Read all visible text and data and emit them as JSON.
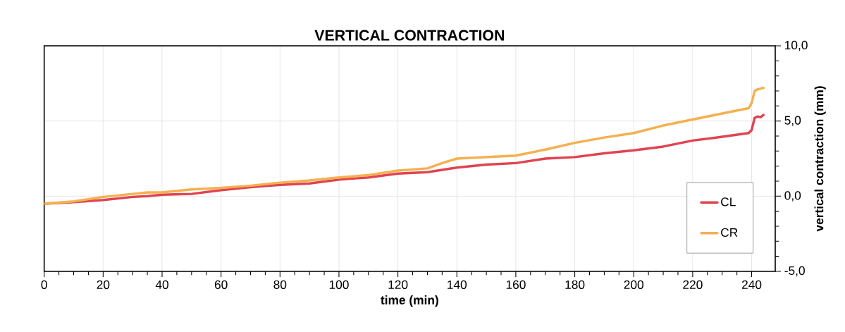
{
  "chart_data": {
    "type": "line",
    "title": "VERTICAL CONTRACTION",
    "xlabel": "time (min)",
    "ylabel": "vertical contraction (mm)",
    "xlim": [
      0,
      248
    ],
    "ylim": [
      -5,
      10
    ],
    "xticks": [
      0,
      20,
      40,
      60,
      80,
      100,
      120,
      140,
      160,
      180,
      200,
      220,
      240
    ],
    "yticks": [
      {
        "value": -5,
        "label": "-5,0"
      },
      {
        "value": 0,
        "label": "0,0"
      },
      {
        "value": 5,
        "label": "5,0"
      },
      {
        "value": 10,
        "label": "10,0"
      }
    ],
    "grid": true,
    "legend": "bottom right",
    "marker": "none",
    "line_style": "solid",
    "series": [
      {
        "name": "CL",
        "color": "#e04450",
        "x": [
          0,
          10,
          20,
          30,
          35,
          40,
          50,
          60,
          70,
          80,
          90,
          100,
          110,
          120,
          130,
          140,
          150,
          160,
          170,
          180,
          190,
          200,
          210,
          220,
          230,
          239,
          240,
          241,
          242,
          243,
          244
        ],
        "values": [
          -0.5,
          -0.4,
          -0.25,
          -0.05,
          0.0,
          0.1,
          0.15,
          0.4,
          0.6,
          0.75,
          0.85,
          1.1,
          1.25,
          1.5,
          1.6,
          1.9,
          2.1,
          2.2,
          2.5,
          2.6,
          2.85,
          3.05,
          3.3,
          3.7,
          3.95,
          4.2,
          4.4,
          5.2,
          5.3,
          5.25,
          5.4
        ]
      },
      {
        "name": "CR",
        "color": "#f5b050",
        "x": [
          0,
          10,
          20,
          30,
          35,
          40,
          50,
          60,
          70,
          80,
          90,
          100,
          110,
          120,
          130,
          135,
          140,
          150,
          160,
          170,
          180,
          190,
          200,
          210,
          220,
          230,
          239,
          240,
          241,
          242,
          244
        ],
        "values": [
          -0.5,
          -0.35,
          -0.05,
          0.15,
          0.25,
          0.25,
          0.45,
          0.55,
          0.7,
          0.9,
          1.05,
          1.25,
          1.4,
          1.7,
          1.85,
          2.2,
          2.5,
          2.6,
          2.7,
          3.1,
          3.55,
          3.9,
          4.2,
          4.7,
          5.1,
          5.5,
          5.85,
          6.2,
          7.0,
          7.1,
          7.2
        ]
      }
    ]
  }
}
